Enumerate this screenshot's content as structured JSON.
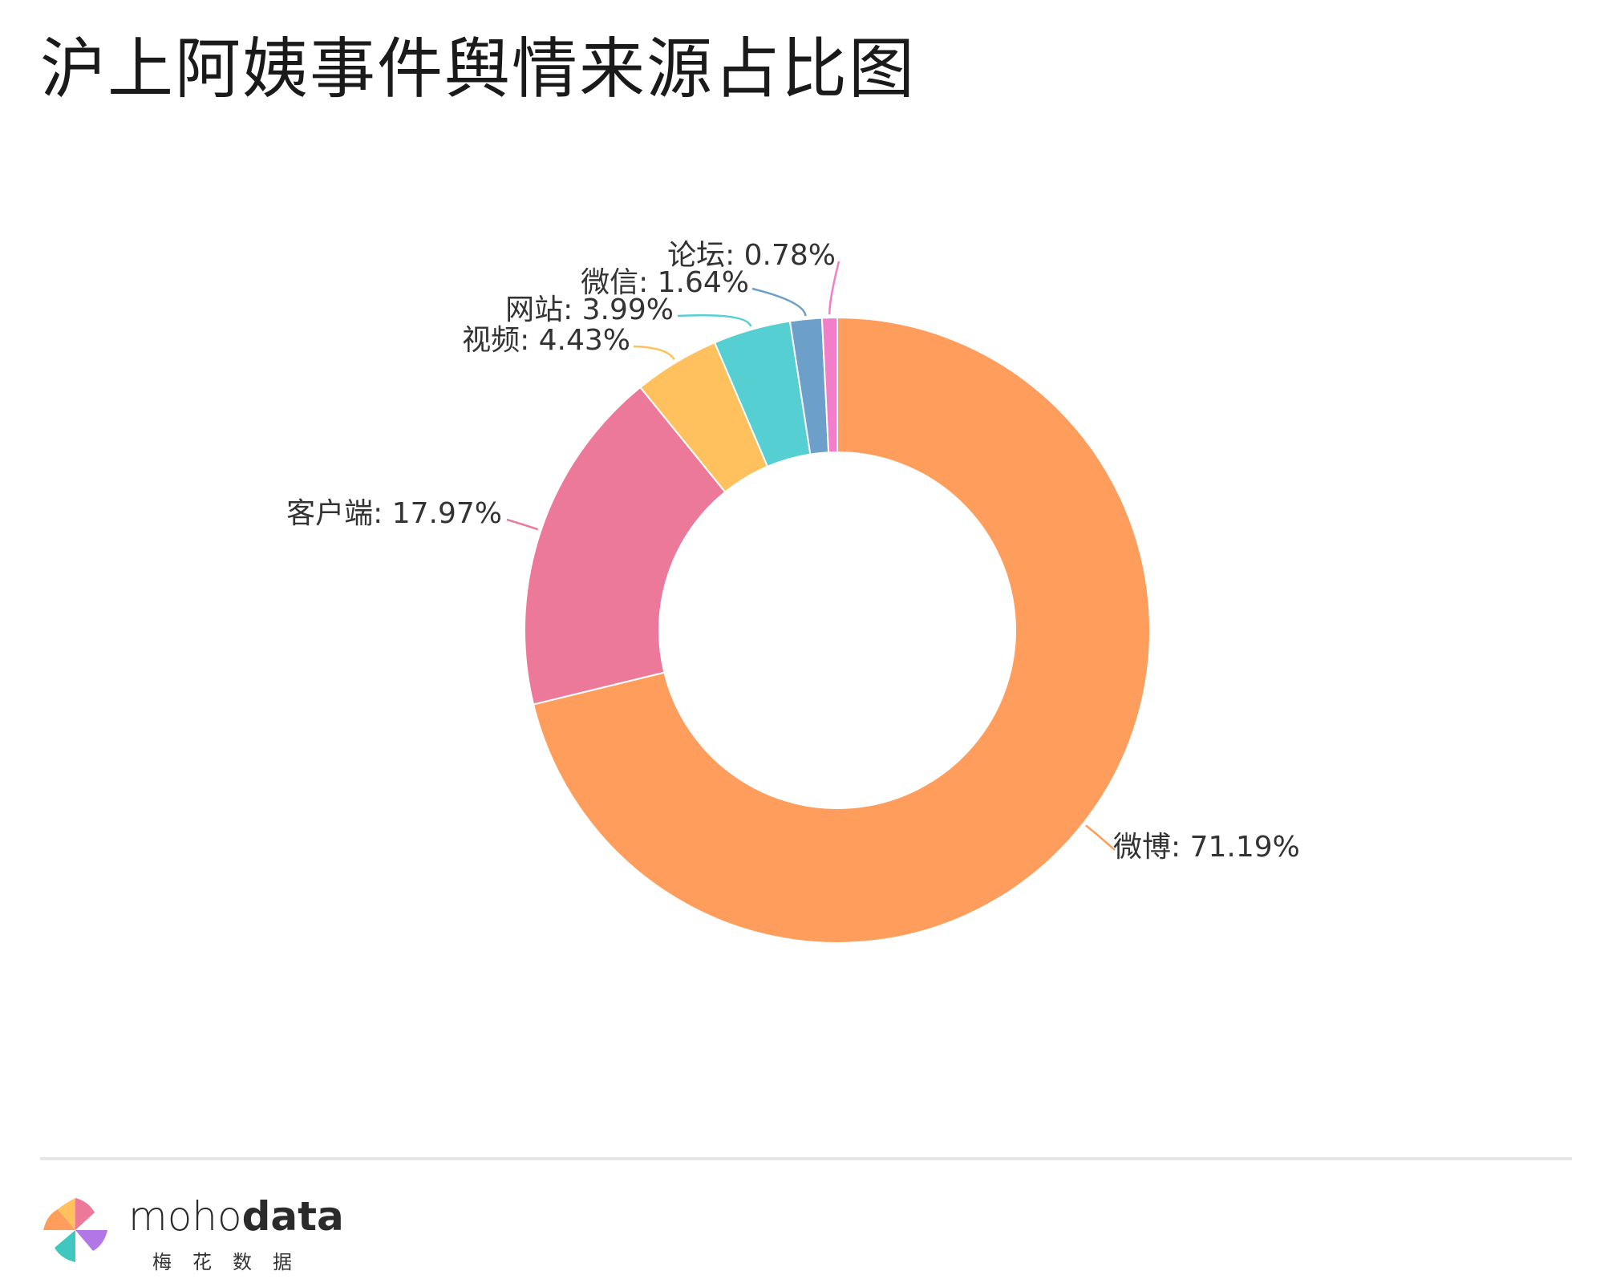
{
  "chart_data": {
    "type": "pie",
    "title": "沪上阿姨事件舆情来源占比图",
    "donut": true,
    "legend": "none",
    "slices": [
      {
        "label": "微博",
        "value": 71.19,
        "display": "微博: 71.19%",
        "color": "#FF9E5C"
      },
      {
        "label": "客户端",
        "value": 17.97,
        "display": "客户端: 17.97%",
        "color": "#EC7999"
      },
      {
        "label": "视频",
        "value": 4.43,
        "display": "视频: 4.43%",
        "color": "#FFC15E"
      },
      {
        "label": "网站",
        "value": 3.99,
        "display": "网站: 3.99%",
        "color": "#56CFD2"
      },
      {
        "label": "微信",
        "value": 1.64,
        "display": "微信: 1.64%",
        "color": "#6C9FC9"
      },
      {
        "label": "论坛",
        "value": 0.78,
        "display": "论坛: 0.78%",
        "color": "#F27DC8"
      }
    ]
  },
  "brand": {
    "name_light": "moho",
    "name_bold": "data",
    "subtitle": "梅花数据"
  }
}
